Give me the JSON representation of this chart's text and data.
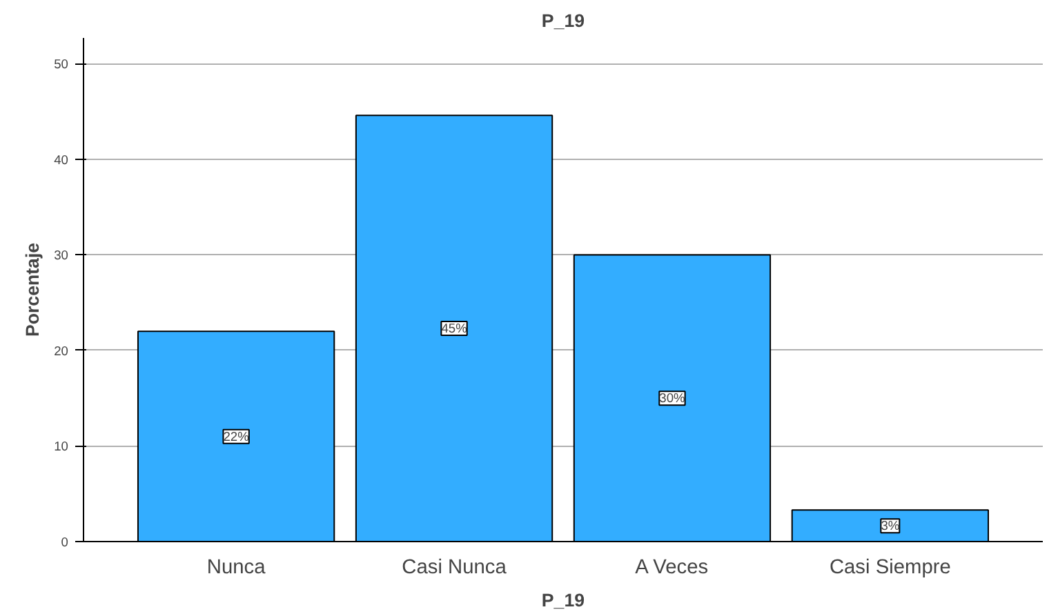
{
  "chart_data": {
    "type": "bar",
    "title": "P_19",
    "xlabel": "P_19",
    "ylabel": "Porcentaje",
    "categories": [
      "Nunca",
      "Casi Nunca",
      "A Veces",
      "Casi Siempre"
    ],
    "values": [
      22.0,
      44.6,
      30.0,
      3.3
    ],
    "value_labels": [
      "22%",
      "45%",
      "30%",
      "3%"
    ],
    "color": "#33adff",
    "ylim": [
      0,
      52.7
    ],
    "yticks": [
      0,
      10,
      20,
      30,
      40,
      50
    ],
    "grid": "y"
  }
}
